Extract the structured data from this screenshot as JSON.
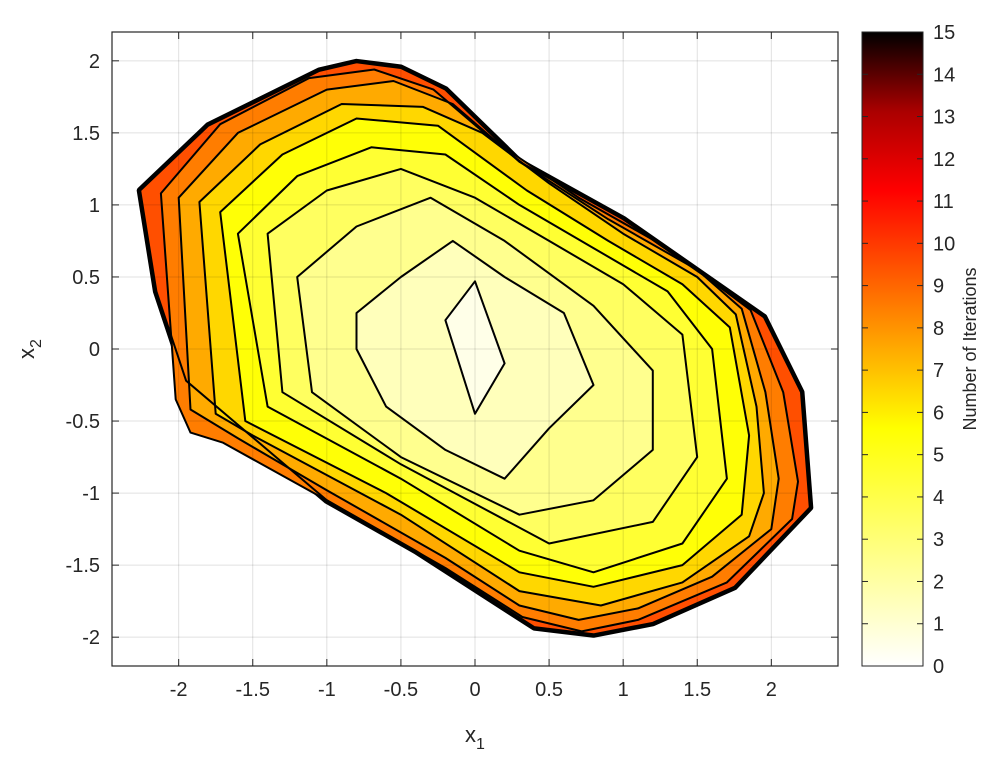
{
  "chart_data": {
    "type": "contour",
    "title": "",
    "xlabel": {
      "base": "x",
      "sub": "1"
    },
    "ylabel": {
      "base": "x",
      "sub": "2"
    },
    "xlim": [
      -2.45,
      2.45
    ],
    "ylim": [
      -2.2,
      2.2
    ],
    "xticks": [
      -2,
      -1.5,
      -1,
      -0.5,
      0,
      0.5,
      1,
      1.5,
      2
    ],
    "yticks": [
      -2,
      -1.5,
      -1,
      -0.5,
      0,
      0.5,
      1,
      1.5,
      2
    ],
    "grid": true,
    "colormap": "hot",
    "colorbar": {
      "label": "Number of Iterations",
      "range": [
        0,
        15
      ],
      "ticks": [
        0,
        1,
        2,
        3,
        4,
        5,
        6,
        7,
        8,
        9,
        10,
        11,
        12,
        13,
        14,
        15
      ],
      "stops": [
        "#ffffff",
        "#ffffaa",
        "#ffff55",
        "#ffff00",
        "#ffaa00",
        "#ff5500",
        "#ff0000",
        "#aa0000",
        "#000000"
      ]
    },
    "contour_levels": [
      {
        "level": 1,
        "points": [
          [
            -0.2,
            0.2
          ],
          [
            0.0,
            0.47
          ],
          [
            0.2,
            -0.1
          ],
          [
            0.0,
            -0.45
          ]
        ]
      },
      {
        "level": 2,
        "points": [
          [
            -0.8,
            0.25
          ],
          [
            -0.5,
            0.5
          ],
          [
            -0.15,
            0.75
          ],
          [
            0.2,
            0.5
          ],
          [
            0.6,
            0.25
          ],
          [
            0.8,
            -0.25
          ],
          [
            0.5,
            -0.55
          ],
          [
            0.2,
            -0.9
          ],
          [
            -0.2,
            -0.7
          ],
          [
            -0.6,
            -0.4
          ],
          [
            -0.8,
            0.0
          ]
        ]
      },
      {
        "level": 3,
        "points": [
          [
            -1.2,
            0.5
          ],
          [
            -0.8,
            0.85
          ],
          [
            -0.3,
            1.05
          ],
          [
            0.2,
            0.75
          ],
          [
            0.8,
            0.3
          ],
          [
            1.2,
            -0.15
          ],
          [
            1.2,
            -0.7
          ],
          [
            0.8,
            -1.05
          ],
          [
            0.3,
            -1.15
          ],
          [
            -0.5,
            -0.75
          ],
          [
            -1.1,
            -0.3
          ]
        ]
      },
      {
        "level": 4,
        "points": [
          [
            -1.4,
            0.8
          ],
          [
            -1.0,
            1.1
          ],
          [
            -0.5,
            1.25
          ],
          [
            0.0,
            1.05
          ],
          [
            0.5,
            0.75
          ],
          [
            1.0,
            0.45
          ],
          [
            1.4,
            0.1
          ],
          [
            1.5,
            -0.75
          ],
          [
            1.2,
            -1.2
          ],
          [
            0.5,
            -1.35
          ],
          [
            -0.5,
            -0.8
          ],
          [
            -1.3,
            -0.3
          ]
        ]
      },
      {
        "level": 5,
        "points": [
          [
            -1.6,
            0.8
          ],
          [
            -1.2,
            1.2
          ],
          [
            -0.7,
            1.4
          ],
          [
            -0.2,
            1.35
          ],
          [
            0.3,
            1.0
          ],
          [
            0.8,
            0.7
          ],
          [
            1.3,
            0.4
          ],
          [
            1.6,
            0.0
          ],
          [
            1.7,
            -0.9
          ],
          [
            1.4,
            -1.35
          ],
          [
            0.8,
            -1.55
          ],
          [
            0.3,
            -1.4
          ],
          [
            -0.5,
            -0.9
          ],
          [
            -1.4,
            -0.4
          ]
        ]
      },
      {
        "level": 6,
        "points": [
          [
            -1.72,
            0.95
          ],
          [
            -1.3,
            1.35
          ],
          [
            -0.8,
            1.6
          ],
          [
            -0.25,
            1.55
          ],
          [
            0.35,
            1.1
          ],
          [
            0.9,
            0.75
          ],
          [
            1.4,
            0.45
          ],
          [
            1.72,
            0.15
          ],
          [
            1.85,
            -0.6
          ],
          [
            1.8,
            -1.15
          ],
          [
            1.4,
            -1.5
          ],
          [
            0.8,
            -1.65
          ],
          [
            0.3,
            -1.55
          ],
          [
            -0.6,
            -1.0
          ],
          [
            -1.55,
            -0.5
          ]
        ]
      },
      {
        "level": 7,
        "points": [
          [
            -1.86,
            1.02
          ],
          [
            -1.45,
            1.42
          ],
          [
            -0.9,
            1.7
          ],
          [
            -0.35,
            1.68
          ],
          [
            0.05,
            1.5
          ],
          [
            0.5,
            1.15
          ],
          [
            1.0,
            0.8
          ],
          [
            1.5,
            0.5
          ],
          [
            1.76,
            0.24
          ],
          [
            1.9,
            -0.4
          ],
          [
            1.95,
            -1.0
          ],
          [
            1.85,
            -1.3
          ],
          [
            1.4,
            -1.62
          ],
          [
            0.85,
            -1.78
          ],
          [
            0.3,
            -1.68
          ],
          [
            -0.5,
            -1.15
          ],
          [
            -1.5,
            -0.6
          ],
          [
            -1.75,
            -0.45
          ]
        ]
      },
      {
        "level": 8,
        "points": [
          [
            -2.0,
            1.05
          ],
          [
            -1.6,
            1.5
          ],
          [
            -1.0,
            1.8
          ],
          [
            -0.55,
            1.86
          ],
          [
            -0.15,
            1.7
          ],
          [
            0.3,
            1.3
          ],
          [
            0.9,
            0.9
          ],
          [
            1.5,
            0.55
          ],
          [
            1.8,
            0.28
          ],
          [
            1.96,
            -0.3
          ],
          [
            2.05,
            -0.9
          ],
          [
            2.0,
            -1.25
          ],
          [
            1.6,
            -1.58
          ],
          [
            1.1,
            -1.8
          ],
          [
            0.7,
            -1.88
          ],
          [
            0.3,
            -1.78
          ],
          [
            -0.2,
            -1.45
          ],
          [
            -1.0,
            -0.98
          ],
          [
            -1.6,
            -0.62
          ],
          [
            -1.92,
            -0.42
          ]
        ]
      },
      {
        "level": 9,
        "points": [
          [
            -2.12,
            1.08
          ],
          [
            -1.72,
            1.56
          ],
          [
            -1.12,
            1.88
          ],
          [
            -0.68,
            1.94
          ],
          [
            -0.28,
            1.8
          ],
          [
            0.12,
            1.45
          ],
          [
            0.7,
            1.05
          ],
          [
            1.3,
            0.7
          ],
          [
            1.86,
            0.27
          ],
          [
            2.08,
            -0.3
          ],
          [
            2.18,
            -0.92
          ],
          [
            2.14,
            -1.18
          ],
          [
            1.7,
            -1.62
          ],
          [
            1.1,
            -1.88
          ],
          [
            0.72,
            -1.96
          ],
          [
            0.32,
            -1.86
          ],
          [
            -0.2,
            -1.52
          ],
          [
            -1.0,
            -1.05
          ],
          [
            -1.7,
            -0.65
          ],
          [
            -1.92,
            -0.58
          ],
          [
            -2.02,
            -0.35
          ]
        ]
      },
      {
        "level": 10,
        "points": [
          [
            -2.26,
            1.1
          ],
          [
            -1.8,
            1.55
          ],
          [
            -1.05,
            1.93
          ],
          [
            -0.8,
            1.99
          ],
          [
            -0.5,
            1.95
          ],
          [
            -0.2,
            1.8
          ],
          [
            0.3,
            1.3
          ],
          [
            1.0,
            0.9
          ],
          [
            1.95,
            0.22
          ],
          [
            2.2,
            -0.3
          ],
          [
            2.26,
            -1.1
          ],
          [
            1.75,
            -1.65
          ],
          [
            1.2,
            -1.9
          ],
          [
            0.8,
            -1.98
          ],
          [
            0.4,
            -1.93
          ],
          [
            -0.4,
            -1.4
          ],
          [
            -1.0,
            -1.05
          ],
          [
            -1.95,
            -0.22
          ],
          [
            -2.15,
            0.4
          ]
        ]
      }
    ]
  }
}
